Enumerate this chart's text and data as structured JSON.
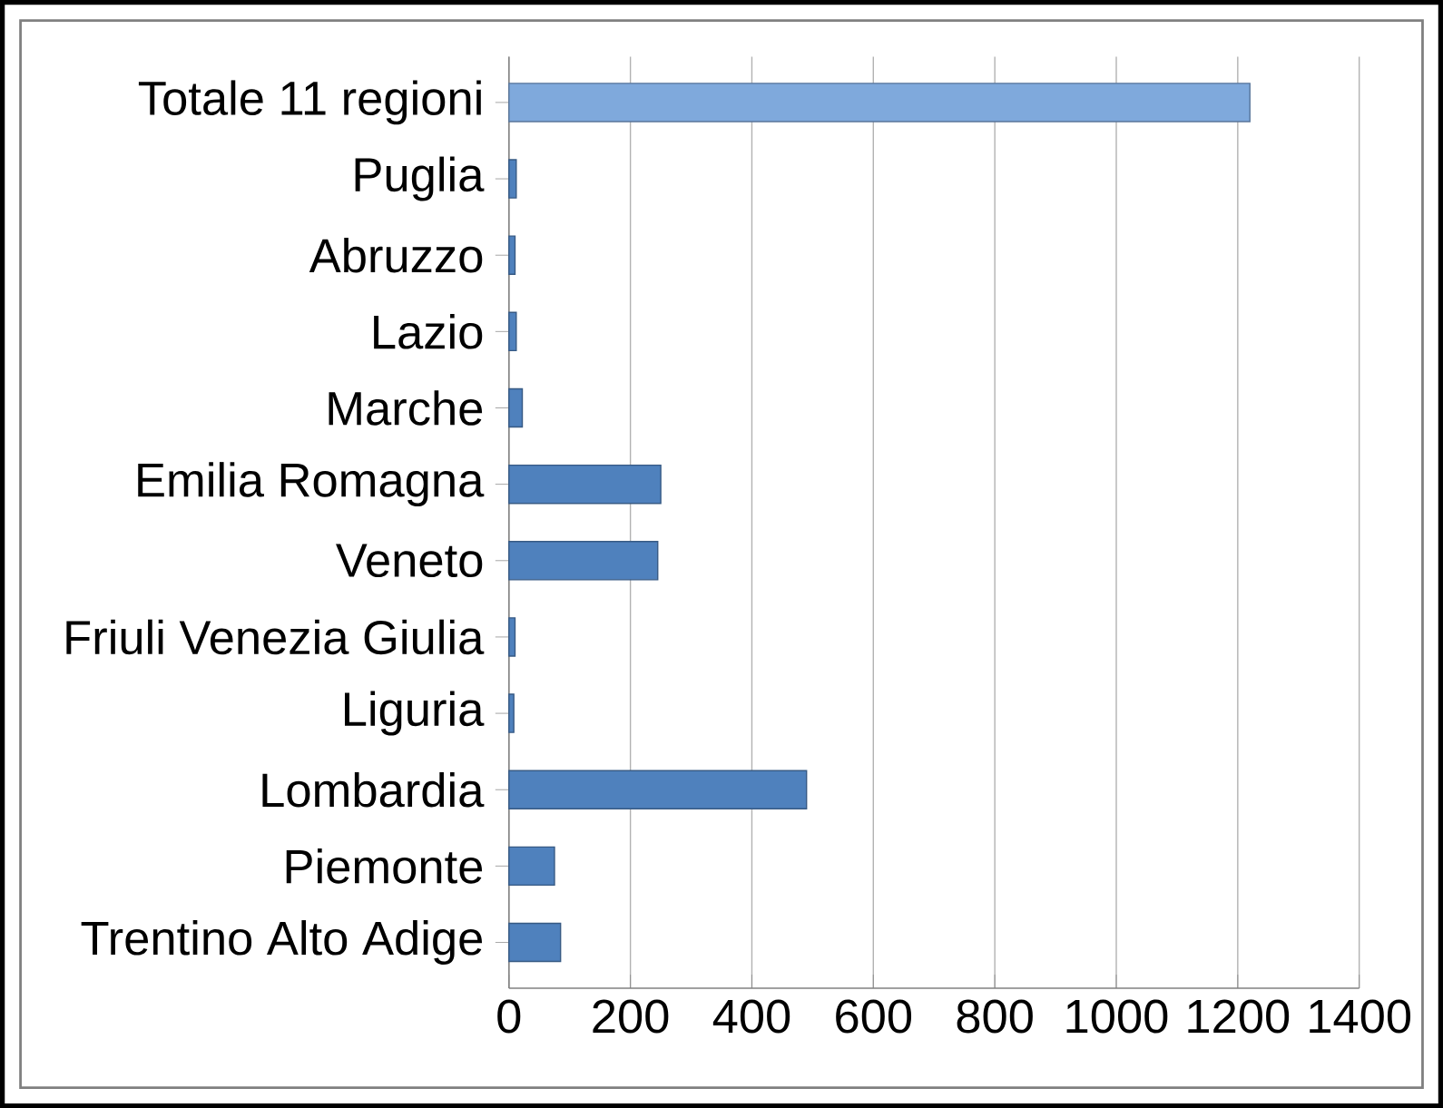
{
  "chart_data": {
    "type": "bar",
    "orientation": "horizontal",
    "categories": [
      "Totale 11 regioni",
      "Puglia",
      "Abruzzo",
      "Lazio",
      "Marche",
      "Emilia Romagna",
      "Veneto",
      "Friuli Venezia Giulia",
      "Liguria",
      "Lombardia",
      "Piemonte",
      "Trentino Alto Adige"
    ],
    "values": [
      1220,
      12,
      10,
      12,
      22,
      250,
      245,
      10,
      8,
      490,
      75,
      85
    ],
    "colors": [
      "#7fa9dc",
      "#4f81bd",
      "#4f81bd",
      "#4f81bd",
      "#4f81bd",
      "#4f81bd",
      "#4f81bd",
      "#4f81bd",
      "#4f81bd",
      "#4f81bd",
      "#4f81bd",
      "#4f81bd"
    ],
    "xlim": [
      0,
      1400
    ],
    "xticks": [
      0,
      200,
      400,
      600,
      800,
      1000,
      1200,
      1400
    ],
    "grid": "x"
  }
}
